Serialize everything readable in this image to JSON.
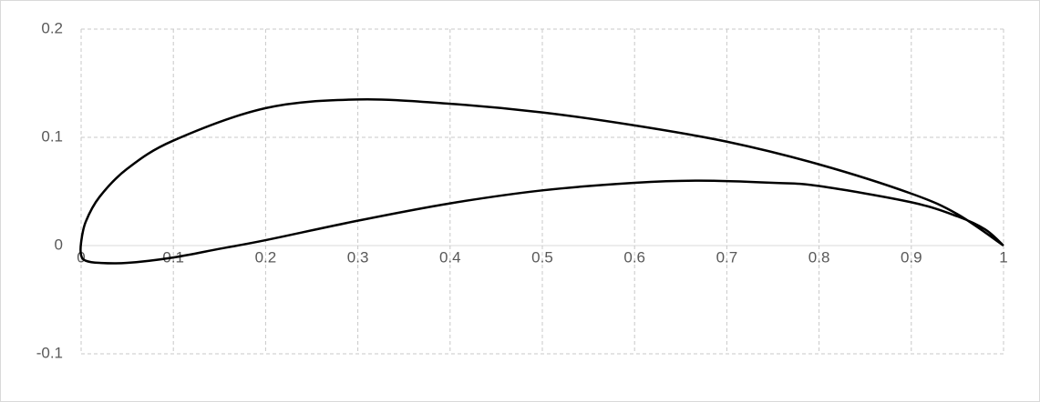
{
  "chart_data": {
    "type": "line",
    "series": [
      {
        "color": "#000000",
        "x": [
          1,
          0.95,
          0.9,
          0.8,
          0.7,
          0.6,
          0.5,
          0.4,
          0.3,
          0.2,
          0.1,
          0.05,
          0.02,
          0.005,
          0,
          0,
          0.005,
          0.02,
          0.05,
          0.1,
          0.15,
          0.2,
          0.3,
          0.4,
          0.5,
          0.6,
          0.67,
          0.75,
          0.8,
          0.9,
          0.95,
          0.98,
          1
        ],
        "values": [
          0,
          0.029,
          0.048,
          0.075,
          0.096,
          0.111,
          0.123,
          0.131,
          0.135,
          0.127,
          0.097,
          0.071,
          0.045,
          0.022,
          0.003,
          -0.009,
          -0.014,
          -0.016,
          -0.016,
          -0.011,
          -0.003,
          0.005,
          0.023,
          0.039,
          0.051,
          0.058,
          0.06,
          0.058,
          0.055,
          0.04,
          0.027,
          0.015,
          0
        ]
      }
    ],
    "xlim": [
      0,
      1
    ],
    "xticks": [
      0,
      0.1,
      0.2,
      0.3,
      0.4,
      0.5,
      0.6,
      0.7,
      0.8,
      0.9,
      1
    ],
    "ylim": [
      -0.1,
      0.2
    ],
    "yticks": [
      -0.1,
      0,
      0.1,
      0.2
    ],
    "grid": true
  }
}
